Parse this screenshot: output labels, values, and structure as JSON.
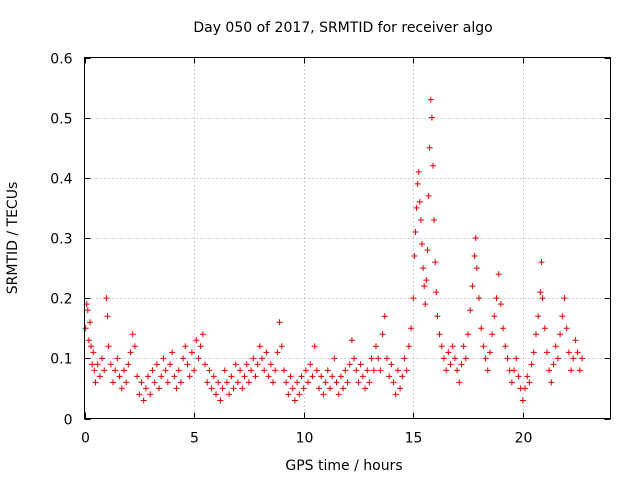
{
  "chart_data": {
    "type": "scatter",
    "title": "Day 050 of 2017, SRMTID for receiver algo",
    "xlabel": "GPS time / hours",
    "ylabel": "SRMTID / TECUs",
    "xlim": [
      0,
      24
    ],
    "ylim": [
      0,
      0.6
    ],
    "xticks": [
      0,
      5,
      10,
      15,
      20
    ],
    "xtick_labels": [
      "0",
      "5",
      "10",
      "15",
      "20"
    ],
    "yticks": [
      0,
      0.1,
      0.2,
      0.3,
      0.4,
      0.5,
      0.6
    ],
    "ytick_labels": [
      "0",
      "0.1",
      "0.2",
      "0.3",
      "0.4",
      "0.5",
      "0.6"
    ],
    "grid": true,
    "marker": "+",
    "marker_color": "#e00000",
    "series": [
      {
        "name": "SRMTID",
        "points": [
          [
            0.05,
            0.15
          ],
          [
            0.1,
            0.19
          ],
          [
            0.15,
            0.18
          ],
          [
            0.2,
            0.13
          ],
          [
            0.25,
            0.16
          ],
          [
            0.3,
            0.12
          ],
          [
            0.35,
            0.09
          ],
          [
            0.4,
            0.11
          ],
          [
            0.45,
            0.08
          ],
          [
            0.5,
            0.06
          ],
          [
            0.6,
            0.09
          ],
          [
            0.7,
            0.07
          ],
          [
            0.8,
            0.1
          ],
          [
            0.9,
            0.08
          ],
          [
            1.0,
            0.2
          ],
          [
            1.05,
            0.17
          ],
          [
            1.1,
            0.12
          ],
          [
            1.2,
            0.09
          ],
          [
            1.3,
            0.06
          ],
          [
            1.4,
            0.08
          ],
          [
            1.5,
            0.1
          ],
          [
            1.6,
            0.07
          ],
          [
            1.7,
            0.05
          ],
          [
            1.8,
            0.08
          ],
          [
            1.9,
            0.06
          ],
          [
            2.0,
            0.09
          ],
          [
            2.1,
            0.11
          ],
          [
            2.2,
            0.14
          ],
          [
            2.3,
            0.12
          ],
          [
            2.4,
            0.07
          ],
          [
            2.5,
            0.04
          ],
          [
            2.6,
            0.06
          ],
          [
            2.7,
            0.03
          ],
          [
            2.8,
            0.05
          ],
          [
            2.9,
            0.07
          ],
          [
            3.0,
            0.04
          ],
          [
            3.1,
            0.08
          ],
          [
            3.2,
            0.06
          ],
          [
            3.3,
            0.09
          ],
          [
            3.4,
            0.05
          ],
          [
            3.5,
            0.07
          ],
          [
            3.6,
            0.1
          ],
          [
            3.7,
            0.08
          ],
          [
            3.8,
            0.06
          ],
          [
            3.9,
            0.09
          ],
          [
            4.0,
            0.11
          ],
          [
            4.1,
            0.07
          ],
          [
            4.2,
            0.05
          ],
          [
            4.3,
            0.08
          ],
          [
            4.4,
            0.06
          ],
          [
            4.5,
            0.1
          ],
          [
            4.6,
            0.12
          ],
          [
            4.7,
            0.09
          ],
          [
            4.8,
            0.07
          ],
          [
            4.9,
            0.11
          ],
          [
            5.0,
            0.08
          ],
          [
            5.1,
            0.13
          ],
          [
            5.2,
            0.1
          ],
          [
            5.3,
            0.12
          ],
          [
            5.4,
            0.14
          ],
          [
            5.5,
            0.09
          ],
          [
            5.6,
            0.06
          ],
          [
            5.7,
            0.08
          ],
          [
            5.8,
            0.05
          ],
          [
            5.9,
            0.07
          ],
          [
            6.0,
            0.04
          ],
          [
            6.1,
            0.06
          ],
          [
            6.2,
            0.03
          ],
          [
            6.3,
            0.05
          ],
          [
            6.4,
            0.08
          ],
          [
            6.5,
            0.06
          ],
          [
            6.6,
            0.04
          ],
          [
            6.7,
            0.07
          ],
          [
            6.8,
            0.05
          ],
          [
            6.9,
            0.09
          ],
          [
            7.0,
            0.06
          ],
          [
            7.1,
            0.08
          ],
          [
            7.2,
            0.05
          ],
          [
            7.3,
            0.07
          ],
          [
            7.4,
            0.09
          ],
          [
            7.5,
            0.06
          ],
          [
            7.6,
            0.08
          ],
          [
            7.7,
            0.1
          ],
          [
            7.8,
            0.07
          ],
          [
            7.9,
            0.09
          ],
          [
            8.0,
            0.12
          ],
          [
            8.1,
            0.1
          ],
          [
            8.2,
            0.08
          ],
          [
            8.3,
            0.11
          ],
          [
            8.4,
            0.07
          ],
          [
            8.5,
            0.09
          ],
          [
            8.6,
            0.06
          ],
          [
            8.7,
            0.08
          ],
          [
            8.8,
            0.11
          ],
          [
            8.9,
            0.16
          ],
          [
            9.0,
            0.12
          ],
          [
            9.1,
            0.08
          ],
          [
            9.2,
            0.06
          ],
          [
            9.3,
            0.04
          ],
          [
            9.4,
            0.07
          ],
          [
            9.5,
            0.05
          ],
          [
            9.6,
            0.03
          ],
          [
            9.7,
            0.06
          ],
          [
            9.8,
            0.04
          ],
          [
            9.9,
            0.07
          ],
          [
            10.0,
            0.05
          ],
          [
            10.1,
            0.08
          ],
          [
            10.2,
            0.06
          ],
          [
            10.3,
            0.09
          ],
          [
            10.4,
            0.07
          ],
          [
            10.5,
            0.12
          ],
          [
            10.6,
            0.08
          ],
          [
            10.7,
            0.05
          ],
          [
            10.8,
            0.07
          ],
          [
            10.9,
            0.04
          ],
          [
            11.0,
            0.06
          ],
          [
            11.1,
            0.08
          ],
          [
            11.2,
            0.05
          ],
          [
            11.3,
            0.07
          ],
          [
            11.4,
            0.1
          ],
          [
            11.5,
            0.06
          ],
          [
            11.6,
            0.04
          ],
          [
            11.7,
            0.07
          ],
          [
            11.8,
            0.05
          ],
          [
            11.9,
            0.08
          ],
          [
            12.0,
            0.06
          ],
          [
            12.1,
            0.09
          ],
          [
            12.2,
            0.13
          ],
          [
            12.3,
            0.1
          ],
          [
            12.4,
            0.08
          ],
          [
            12.5,
            0.06
          ],
          [
            12.6,
            0.09
          ],
          [
            12.7,
            0.07
          ],
          [
            12.8,
            0.05
          ],
          [
            12.9,
            0.08
          ],
          [
            13.0,
            0.06
          ],
          [
            13.1,
            0.1
          ],
          [
            13.2,
            0.08
          ],
          [
            13.3,
            0.12
          ],
          [
            13.4,
            0.1
          ],
          [
            13.5,
            0.08
          ],
          [
            13.6,
            0.14
          ],
          [
            13.7,
            0.17
          ],
          [
            13.8,
            0.1
          ],
          [
            13.9,
            0.07
          ],
          [
            14.0,
            0.09
          ],
          [
            14.1,
            0.06
          ],
          [
            14.2,
            0.04
          ],
          [
            14.3,
            0.08
          ],
          [
            14.4,
            0.05
          ],
          [
            14.5,
            0.07
          ],
          [
            14.6,
            0.1
          ],
          [
            14.7,
            0.08
          ],
          [
            14.8,
            0.12
          ],
          [
            14.9,
            0.15
          ],
          [
            15.0,
            0.2
          ],
          [
            15.05,
            0.27
          ],
          [
            15.1,
            0.31
          ],
          [
            15.15,
            0.35
          ],
          [
            15.2,
            0.39
          ],
          [
            15.25,
            0.41
          ],
          [
            15.3,
            0.36
          ],
          [
            15.35,
            0.33
          ],
          [
            15.4,
            0.29
          ],
          [
            15.45,
            0.25
          ],
          [
            15.5,
            0.22
          ],
          [
            15.55,
            0.19
          ],
          [
            15.6,
            0.23
          ],
          [
            15.65,
            0.28
          ],
          [
            15.7,
            0.37
          ],
          [
            15.75,
            0.45
          ],
          [
            15.8,
            0.53
          ],
          [
            15.85,
            0.5
          ],
          [
            15.9,
            0.42
          ],
          [
            15.95,
            0.33
          ],
          [
            16.0,
            0.26
          ],
          [
            16.05,
            0.21
          ],
          [
            16.1,
            0.17
          ],
          [
            16.2,
            0.14
          ],
          [
            16.3,
            0.12
          ],
          [
            16.4,
            0.1
          ],
          [
            16.5,
            0.08
          ],
          [
            16.6,
            0.11
          ],
          [
            16.7,
            0.09
          ],
          [
            16.8,
            0.12
          ],
          [
            16.9,
            0.1
          ],
          [
            17.0,
            0.08
          ],
          [
            17.1,
            0.06
          ],
          [
            17.2,
            0.09
          ],
          [
            17.3,
            0.12
          ],
          [
            17.4,
            0.1
          ],
          [
            17.5,
            0.14
          ],
          [
            17.6,
            0.18
          ],
          [
            17.7,
            0.22
          ],
          [
            17.8,
            0.27
          ],
          [
            17.85,
            0.3
          ],
          [
            17.9,
            0.25
          ],
          [
            18.0,
            0.2
          ],
          [
            18.1,
            0.15
          ],
          [
            18.2,
            0.12
          ],
          [
            18.3,
            0.1
          ],
          [
            18.4,
            0.08
          ],
          [
            18.5,
            0.11
          ],
          [
            18.6,
            0.14
          ],
          [
            18.7,
            0.17
          ],
          [
            18.8,
            0.2
          ],
          [
            18.9,
            0.24
          ],
          [
            19.0,
            0.19
          ],
          [
            19.1,
            0.15
          ],
          [
            19.2,
            0.12
          ],
          [
            19.3,
            0.1
          ],
          [
            19.4,
            0.08
          ],
          [
            19.5,
            0.06
          ],
          [
            19.6,
            0.08
          ],
          [
            19.7,
            0.1
          ],
          [
            19.8,
            0.07
          ],
          [
            19.9,
            0.05
          ],
          [
            20.0,
            0.03
          ],
          [
            20.1,
            0.05
          ],
          [
            20.2,
            0.07
          ],
          [
            20.3,
            0.06
          ],
          [
            20.4,
            0.09
          ],
          [
            20.5,
            0.11
          ],
          [
            20.6,
            0.14
          ],
          [
            20.7,
            0.17
          ],
          [
            20.8,
            0.21
          ],
          [
            20.85,
            0.26
          ],
          [
            20.9,
            0.2
          ],
          [
            21.0,
            0.15
          ],
          [
            21.1,
            0.11
          ],
          [
            21.2,
            0.08
          ],
          [
            21.3,
            0.06
          ],
          [
            21.4,
            0.09
          ],
          [
            21.5,
            0.12
          ],
          [
            21.6,
            0.1
          ],
          [
            21.7,
            0.14
          ],
          [
            21.8,
            0.17
          ],
          [
            21.9,
            0.2
          ],
          [
            22.0,
            0.15
          ],
          [
            22.1,
            0.11
          ],
          [
            22.2,
            0.08
          ],
          [
            22.3,
            0.1
          ],
          [
            22.4,
            0.13
          ],
          [
            22.5,
            0.11
          ],
          [
            22.6,
            0.08
          ],
          [
            22.7,
            0.1
          ]
        ]
      }
    ]
  }
}
